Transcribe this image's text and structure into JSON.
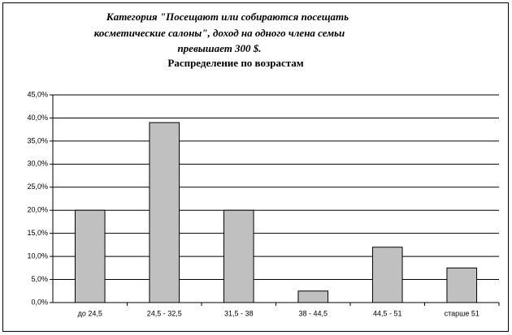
{
  "chart_data": {
    "type": "bar",
    "title": [
      "Категория  \"Посещают или собираются посещать",
      "косметические салоны\", доход на одного члена семьи",
      "превышает 300 $."
    ],
    "subtitle": "Распределение по возрастам",
    "categories": [
      "до 24,5",
      "24,5 - 32,5",
      "31,5 - 38",
      "38 - 44,5",
      "44,5 - 51",
      "старше 51"
    ],
    "values": [
      20,
      39,
      20,
      2.5,
      12,
      7.5
    ],
    "color": "#c0c0c0",
    "ylim": [
      0,
      45
    ],
    "yticks": [
      {
        "value": 0,
        "label": "0,0%"
      },
      {
        "value": 5,
        "label": "5,0%"
      },
      {
        "value": 10,
        "label": "10,0%"
      },
      {
        "value": 15,
        "label": "15,0%"
      },
      {
        "value": 20,
        "label": "20,0%"
      },
      {
        "value": 25,
        "label": "25,0%"
      },
      {
        "value": 30,
        "label": "30,0%"
      },
      {
        "value": 35,
        "label": "35,0%"
      },
      {
        "value": 40,
        "label": "40,0%"
      },
      {
        "value": 45,
        "label": "45,0%"
      }
    ],
    "grid": true
  }
}
